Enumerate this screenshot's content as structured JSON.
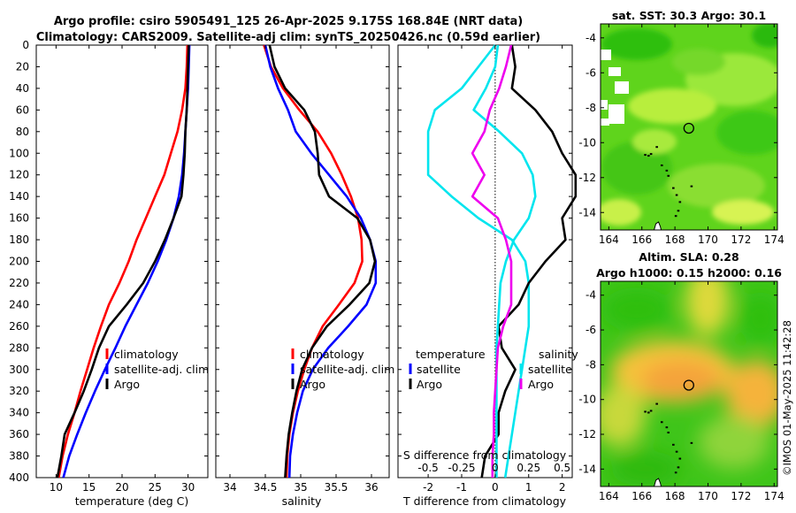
{
  "header": {
    "line1": "Argo profile: csiro 5905491_125 26-Apr-2025 9.175S 168.84E (NRT data)",
    "line2": "Climatology: CARS2009. Satellite-adj clim: synTS_20250426.nc (0.59d earlier)"
  },
  "colors": {
    "climatology": "#ff0000",
    "satellite": "#0000ff",
    "argo": "#000000",
    "sal_satellite": "#00e5ee",
    "sal_argo": "#ee00ee",
    "land": "#000000"
  },
  "timestamp": "©IMOS 01-May-2025 11:42:28",
  "chart_data": [
    {
      "type": "line",
      "id": "temperature",
      "xlabel": "temperature (deg C)",
      "ylabel": "",
      "xlim": [
        7,
        33
      ],
      "ylim": [
        400,
        0
      ],
      "xticks": [
        10,
        15,
        20,
        25,
        30
      ],
      "yticks": [
        0,
        20,
        40,
        60,
        80,
        100,
        120,
        140,
        160,
        180,
        200,
        220,
        240,
        260,
        280,
        300,
        320,
        340,
        360,
        380,
        400
      ],
      "legend": [
        "climatology",
        "satellite-adj. clim",
        "Argo"
      ],
      "series": [
        {
          "name": "climatology",
          "color": "#ff0000",
          "depth": [
            0,
            20,
            40,
            60,
            80,
            100,
            120,
            140,
            160,
            180,
            200,
            220,
            240,
            260,
            280,
            300,
            320,
            340,
            360,
            380,
            400
          ],
          "values": [
            29.9,
            29.8,
            29.6,
            29.1,
            28.4,
            27.4,
            26.4,
            25.0,
            23.6,
            22.2,
            21.0,
            19.6,
            18.0,
            16.8,
            15.7,
            14.7,
            13.7,
            12.8,
            11.8,
            11.0,
            10.4
          ]
        },
        {
          "name": "satellite-adj. clim",
          "color": "#0000ff",
          "depth": [
            0,
            20,
            40,
            60,
            80,
            100,
            120,
            140,
            160,
            180,
            200,
            220,
            240,
            260,
            280,
            300,
            320,
            340,
            360,
            380,
            400
          ],
          "values": [
            30.2,
            30.1,
            30.0,
            29.8,
            29.6,
            29.4,
            29.1,
            28.6,
            27.8,
            26.7,
            25.4,
            23.9,
            22.2,
            20.5,
            19.0,
            17.4,
            15.9,
            14.5,
            13.2,
            12.0,
            11.1
          ]
        },
        {
          "name": "Argo",
          "color": "#000000",
          "depth": [
            0,
            20,
            40,
            60,
            80,
            100,
            120,
            140,
            160,
            180,
            200,
            220,
            240,
            260,
            280,
            300,
            320,
            340,
            360,
            380,
            400
          ],
          "values": [
            30.1,
            30.0,
            29.9,
            29.8,
            29.6,
            29.5,
            29.3,
            29.0,
            27.8,
            26.5,
            25.0,
            23.2,
            20.7,
            18.0,
            16.5,
            15.4,
            14.2,
            12.8,
            11.3,
            10.8,
            10.2
          ]
        }
      ]
    },
    {
      "type": "line",
      "id": "salinity",
      "xlabel": "salinity",
      "ylabel": "",
      "xlim": [
        33.8,
        36.25
      ],
      "ylim": [
        400,
        0
      ],
      "xticks": [
        34,
        34.5,
        35,
        35.5,
        36
      ],
      "legend": [
        "climatology",
        "satellite-adj. clim",
        "Argo"
      ],
      "series": [
        {
          "name": "climatology",
          "color": "#ff0000",
          "depth": [
            0,
            20,
            40,
            60,
            80,
            100,
            120,
            140,
            160,
            180,
            200,
            220,
            240,
            260,
            280,
            300,
            320,
            340,
            360,
            380,
            400
          ],
          "values": [
            34.48,
            34.58,
            34.75,
            34.98,
            35.24,
            35.43,
            35.58,
            35.71,
            35.81,
            35.86,
            35.87,
            35.76,
            35.54,
            35.31,
            35.16,
            35.05,
            34.96,
            34.89,
            34.84,
            34.81,
            34.8
          ]
        },
        {
          "name": "satellite-adj. clim",
          "color": "#0000ff",
          "depth": [
            0,
            20,
            40,
            60,
            80,
            100,
            120,
            140,
            160,
            180,
            200,
            220,
            240,
            260,
            280,
            300,
            320,
            340,
            360,
            380,
            400
          ],
          "values": [
            34.5,
            34.57,
            34.68,
            34.82,
            34.93,
            35.15,
            35.4,
            35.65,
            35.85,
            35.98,
            36.06,
            36.06,
            35.93,
            35.67,
            35.39,
            35.17,
            35.03,
            34.95,
            34.89,
            34.85,
            34.84
          ]
        },
        {
          "name": "Argo",
          "color": "#000000",
          "depth": [
            0,
            20,
            40,
            60,
            80,
            100,
            120,
            140,
            160,
            180,
            200,
            220,
            240,
            260,
            280,
            300,
            320,
            340,
            360,
            380,
            400
          ],
          "values": [
            34.56,
            34.63,
            34.78,
            35.05,
            35.2,
            35.24,
            35.26,
            35.4,
            35.8,
            35.98,
            36.05,
            35.97,
            35.69,
            35.37,
            35.16,
            35.02,
            34.94,
            34.88,
            34.83,
            34.8,
            34.78
          ]
        }
      ]
    },
    {
      "type": "line",
      "id": "difference",
      "xlabel": "T difference from climatology",
      "top_axis_label": "S difference from climatology",
      "xlim": [
        -2.9,
        2.3
      ],
      "ylim": [
        400,
        0
      ],
      "xticks": [
        -2,
        -1,
        0,
        1,
        2
      ],
      "top_xlim": [
        -0.725,
        0.575
      ],
      "top_xticks": [
        -0.5,
        -0.25,
        0,
        0.25,
        0.5
      ],
      "top_xtick_labels": [
        "-0.5",
        "-0.25",
        "0",
        "0.25",
        "0.5"
      ],
      "zero_line": true,
      "legend_left_title": "temperature",
      "legend_right_title": "salinity",
      "legend_left": [
        "satellite",
        "Argo"
      ],
      "legend_right": [
        "satellite",
        "Argo"
      ],
      "series": [
        {
          "name": "temperature satellite",
          "axis": "T",
          "color": "#00e5ee",
          "depth": [
            0,
            20,
            40,
            60,
            80,
            100,
            120,
            140,
            160,
            180,
            200,
            220,
            240,
            260,
            280,
            300,
            320,
            340,
            360,
            380,
            400
          ],
          "values": [
            0.0,
            -0.5,
            -1.0,
            -1.8,
            -2.0,
            -2.0,
            -2.0,
            -1.3,
            -0.5,
            0.5,
            0.9,
            1.0,
            1.0,
            1.0,
            0.9,
            0.8,
            0.7,
            0.6,
            0.5,
            0.4,
            0.3
          ]
        },
        {
          "name": "temperature Argo",
          "axis": "T",
          "color": "#000000",
          "depth": [
            0,
            20,
            40,
            60,
            80,
            100,
            120,
            140,
            160,
            180,
            200,
            220,
            240,
            260,
            280,
            300,
            320,
            340,
            360,
            380,
            400
          ],
          "values": [
            0.5,
            0.6,
            0.5,
            1.2,
            1.7,
            2.0,
            2.4,
            2.4,
            2.0,
            2.1,
            1.5,
            1.0,
            0.7,
            0.1,
            0.2,
            0.6,
            0.3,
            0.1,
            0.1,
            -0.3,
            -0.4
          ]
        },
        {
          "name": "salinity satellite",
          "axis": "S",
          "color": "#00e5ee",
          "depth": [
            0,
            20,
            40,
            60,
            80,
            100,
            120,
            140,
            160,
            180,
            200,
            220,
            240,
            260,
            280,
            300,
            320,
            340,
            360,
            380,
            400
          ],
          "values": [
            0.02,
            0.0,
            -0.07,
            -0.16,
            0.03,
            0.2,
            0.28,
            0.3,
            0.25,
            0.14,
            0.08,
            0.04,
            0.03,
            0.02,
            0.01,
            0.01,
            0.01,
            0.01,
            0.01,
            0.01,
            0.01
          ]
        },
        {
          "name": "salinity Argo",
          "axis": "S",
          "color": "#ee00ee",
          "depth": [
            0,
            20,
            40,
            60,
            80,
            100,
            120,
            140,
            160,
            180,
            200,
            220,
            240,
            260,
            280,
            300,
            320,
            340,
            360,
            380,
            400
          ],
          "values": [
            0.12,
            0.08,
            0.03,
            -0.04,
            -0.08,
            -0.17,
            -0.08,
            -0.17,
            0.02,
            0.08,
            0.12,
            0.12,
            0.12,
            0.06,
            0.02,
            0.01,
            0.0,
            -0.01,
            -0.01,
            -0.02,
            -0.02
          ]
        }
      ]
    },
    {
      "type": "heatmap",
      "id": "sst-map",
      "title": "sat. SST: 30.3 Argo: 30.1",
      "xlim": [
        163.5,
        174.2
      ],
      "ylim": [
        -15,
        -3.2
      ],
      "xticks": [
        164,
        166,
        168,
        170,
        172,
        174
      ],
      "yticks": [
        -4,
        -6,
        -8,
        -10,
        -12,
        -14
      ],
      "argo_position": {
        "lon": 168.84,
        "lat": -9.175
      },
      "sat_value": 30.3,
      "argo_value": 30.1
    },
    {
      "type": "heatmap",
      "id": "sla-map",
      "title_line1": "Altim. SLA: 0.28",
      "title_line2": "Argo h1000: 0.15 h2000: 0.16",
      "xlim": [
        163.5,
        174.2
      ],
      "ylim": [
        -15,
        -3.2
      ],
      "xticks": [
        164,
        166,
        168,
        170,
        172,
        174
      ],
      "yticks": [
        -4,
        -6,
        -8,
        -10,
        -12,
        -14
      ],
      "argo_position": {
        "lon": 168.84,
        "lat": -9.175
      },
      "sla_value": 0.28,
      "h1000": 0.15,
      "h2000": 0.16
    }
  ]
}
